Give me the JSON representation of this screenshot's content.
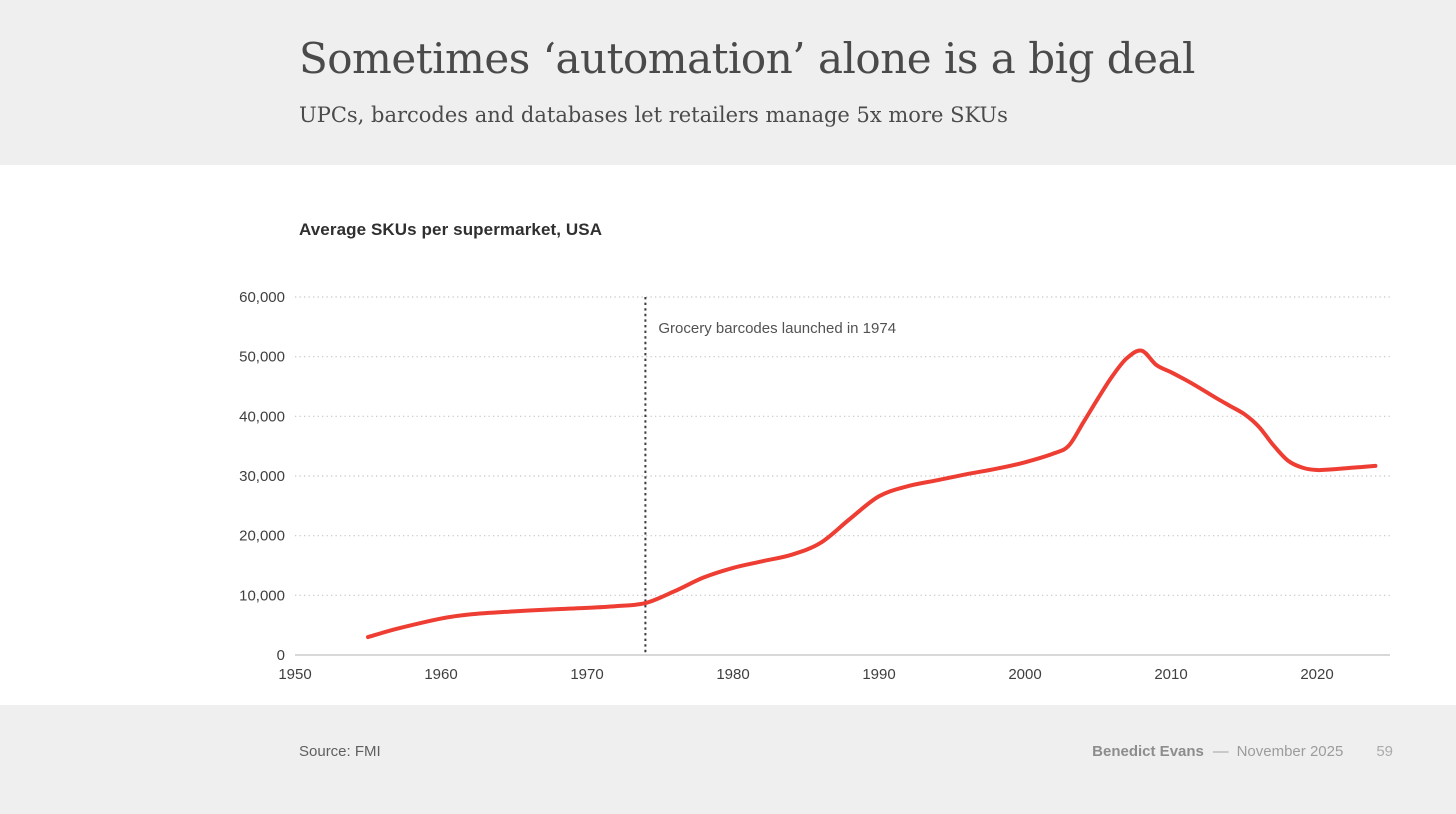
{
  "header": {
    "title": "Sometimes ‘automation’ alone is a big deal",
    "subtitle": "UPCs, barcodes and databases let retailers manage 5x more SKUs"
  },
  "chart_data": {
    "type": "line",
    "title": "Average SKUs per supermarket, USA",
    "xlabel": "",
    "ylabel": "",
    "xlim": [
      1950,
      2025
    ],
    "ylim": [
      0,
      60000
    ],
    "x_ticks": [
      1950,
      1960,
      1970,
      1980,
      1990,
      2000,
      2010,
      2020
    ],
    "y_ticks": [
      0,
      10000,
      20000,
      30000,
      40000,
      50000,
      60000
    ],
    "y_tick_labels": [
      "0",
      "10,000",
      "20,000",
      "30,000",
      "40,000",
      "50,000",
      "60,000"
    ],
    "grid": "dotted-horizontal",
    "legend": "none",
    "annotation": {
      "text": "Grocery barcodes launched in 1974",
      "year": 1974,
      "style": "dotted-vertical-line"
    },
    "series": [
      {
        "name": "Average SKUs per supermarket",
        "color": "#ee3e33",
        "points": [
          [
            1955,
            3000
          ],
          [
            1957,
            4400
          ],
          [
            1960,
            6100
          ],
          [
            1962,
            6800
          ],
          [
            1965,
            7300
          ],
          [
            1968,
            7700
          ],
          [
            1970,
            7900
          ],
          [
            1972,
            8200
          ],
          [
            1974,
            8700
          ],
          [
            1976,
            10700
          ],
          [
            1978,
            13000
          ],
          [
            1980,
            14600
          ],
          [
            1982,
            15700
          ],
          [
            1984,
            16800
          ],
          [
            1986,
            18800
          ],
          [
            1988,
            22800
          ],
          [
            1990,
            26600
          ],
          [
            1992,
            28300
          ],
          [
            1994,
            29300
          ],
          [
            1996,
            30300
          ],
          [
            1998,
            31200
          ],
          [
            2000,
            32300
          ],
          [
            2002,
            33800
          ],
          [
            2003,
            35100
          ],
          [
            2004,
            39000
          ],
          [
            2005,
            43000
          ],
          [
            2006,
            46800
          ],
          [
            2007,
            49800
          ],
          [
            2008,
            51000
          ],
          [
            2009,
            48600
          ],
          [
            2010,
            47400
          ],
          [
            2011,
            46100
          ],
          [
            2012,
            44700
          ],
          [
            2013,
            43200
          ],
          [
            2014,
            41800
          ],
          [
            2015,
            40400
          ],
          [
            2016,
            38300
          ],
          [
            2017,
            35200
          ],
          [
            2018,
            32600
          ],
          [
            2019,
            31400
          ],
          [
            2020,
            31000
          ],
          [
            2021,
            31100
          ],
          [
            2022,
            31300
          ],
          [
            2023,
            31500
          ],
          [
            2024,
            31700
          ]
        ]
      }
    ]
  },
  "footer": {
    "source": "Source: FMI",
    "author": "Benedict Evans",
    "separator": "––",
    "date": "November 2025",
    "page": "59"
  },
  "colors": {
    "accent_red": "#ee3e33",
    "band_gray": "#efefef",
    "grid_gray": "#c6c6c6",
    "axis_gray": "#b0b0b0",
    "vline_dark": "#3d3d3d"
  }
}
